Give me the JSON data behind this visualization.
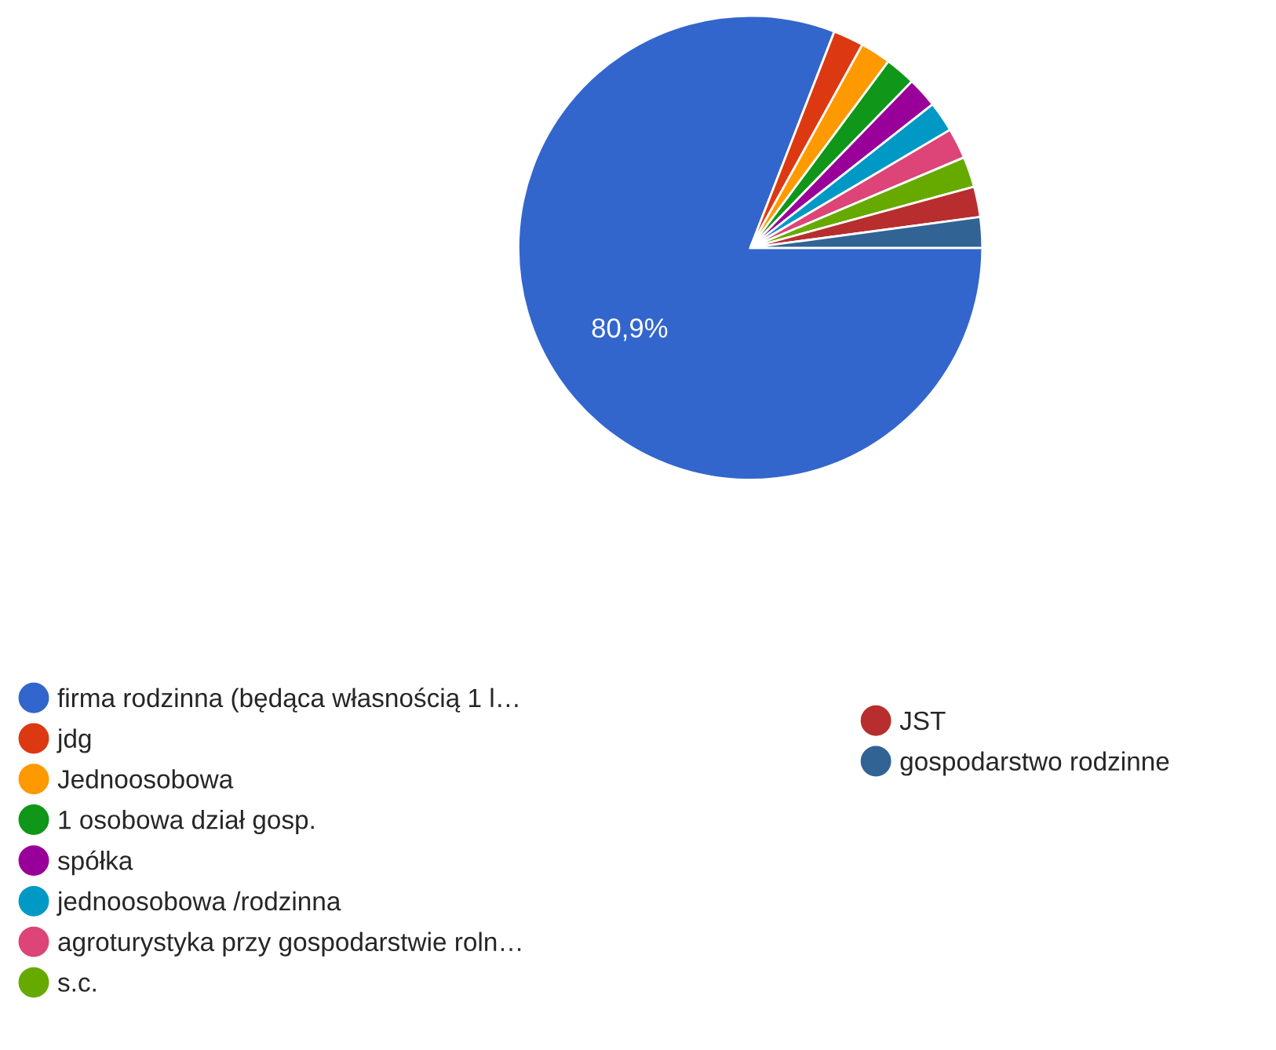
{
  "chart_data": {
    "type": "pie",
    "categories": [
      "firma rodzinna (będąca własnością 1 l…",
      "jdg",
      "Jednoosobowa",
      "1 osobowa dział gosp.",
      "spółka",
      "jednoosobowa /rodzinna",
      "agroturystyka przy gospodarstwie roln…",
      "s.c.",
      "JST",
      "gospodarstwo rodzinne"
    ],
    "values": [
      80.9,
      2.1222,
      2.1222,
      2.1222,
      2.1222,
      2.1222,
      2.1222,
      2.1222,
      2.1222,
      2.1222
    ],
    "colors": [
      "#3366cc",
      "#dc3912",
      "#ff9900",
      "#109618",
      "#990099",
      "#0099c6",
      "#dd4477",
      "#66aa00",
      "#b82e2e",
      "#316395"
    ],
    "value_labels": [
      "80,9%",
      null,
      null,
      null,
      null,
      null,
      null,
      null,
      null,
      null
    ],
    "legend": "bottom"
  }
}
